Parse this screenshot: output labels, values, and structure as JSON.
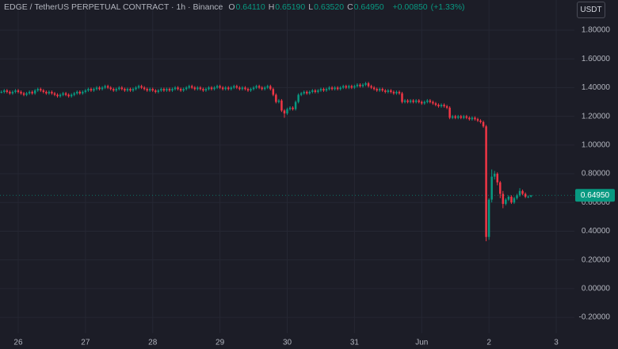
{
  "chart_data": {
    "type": "candlestick",
    "title": "EDGE / TetherUS PERPETUAL CONTRACT · 1h · Binance",
    "currency": "USDT",
    "ohlc_legend": [
      {
        "label": "O",
        "value_label": "0.64110"
      },
      {
        "label": "H",
        "value_label": "0.65190"
      },
      {
        "label": "L",
        "value_label": "0.63520"
      },
      {
        "label": "C",
        "value_label": "0.64950"
      }
    ],
    "change": {
      "value": 0.0085,
      "label": "+0.00850"
    },
    "change_pct": {
      "value": 1.33,
      "label": "(+1.33%)"
    },
    "last_price_label": "0.64950",
    "up_color": "#089981",
    "down_color": "#f23645",
    "grid": true,
    "xlim": [
      -0.5,
      204.5
    ],
    "xticks": [
      {
        "value": 6,
        "label": "26"
      },
      {
        "value": 30,
        "label": "27"
      },
      {
        "value": 54,
        "label": "28"
      },
      {
        "value": 78,
        "label": "29"
      },
      {
        "value": 102,
        "label": "30"
      },
      {
        "value": 126,
        "label": "31"
      },
      {
        "value": 150,
        "label": "Jun"
      },
      {
        "value": 174,
        "label": "2"
      },
      {
        "value": 198,
        "label": "3"
      }
    ],
    "ylim": [
      -0.31,
      2.01
    ],
    "yticks": [
      {
        "value": 1.8,
        "label": "1.80000"
      },
      {
        "value": 1.6,
        "label": "1.60000"
      },
      {
        "value": 1.4,
        "label": "1.40000"
      },
      {
        "value": 1.2,
        "label": "1.20000"
      },
      {
        "value": 1.0,
        "label": "1.00000"
      },
      {
        "value": 0.8,
        "label": "0.80000"
      },
      {
        "value": 0.6,
        "label": "0.60000"
      },
      {
        "value": 0.4,
        "label": "0.40000"
      },
      {
        "value": 0.2,
        "label": "0.20000"
      },
      {
        "value": 0,
        "label": "0.00000"
      },
      {
        "value": -0.2,
        "label": "-0.20000"
      }
    ],
    "x": [
      0,
      1,
      2,
      3,
      4,
      5,
      6,
      7,
      8,
      9,
      10,
      11,
      12,
      13,
      14,
      15,
      16,
      17,
      18,
      19,
      20,
      21,
      22,
      23,
      24,
      25,
      26,
      27,
      28,
      29,
      30,
      31,
      32,
      33,
      34,
      35,
      36,
      37,
      38,
      39,
      40,
      41,
      42,
      43,
      44,
      45,
      46,
      47,
      48,
      49,
      50,
      51,
      52,
      53,
      54,
      55,
      56,
      57,
      58,
      59,
      60,
      61,
      62,
      63,
      64,
      65,
      66,
      67,
      68,
      69,
      70,
      71,
      72,
      73,
      74,
      75,
      76,
      77,
      78,
      79,
      80,
      81,
      82,
      83,
      84,
      85,
      86,
      87,
      88,
      89,
      90,
      91,
      92,
      93,
      94,
      95,
      96,
      97,
      98,
      99,
      100,
      101,
      102,
      103,
      104,
      105,
      106,
      107,
      108,
      109,
      110,
      111,
      112,
      113,
      114,
      115,
      116,
      117,
      118,
      119,
      120,
      121,
      122,
      123,
      124,
      125,
      126,
      127,
      128,
      129,
      130,
      131,
      132,
      133,
      134,
      135,
      136,
      137,
      138,
      139,
      140,
      141,
      142,
      143,
      144,
      145,
      146,
      147,
      148,
      149,
      150,
      151,
      152,
      153,
      154,
      155,
      156,
      157,
      158,
      159,
      160,
      161,
      162,
      163,
      164,
      165,
      166,
      167,
      168,
      169,
      170,
      171,
      172,
      173,
      174,
      175,
      176,
      177,
      178,
      179,
      180,
      181,
      182,
      183,
      184,
      185,
      186,
      187,
      188,
      189
    ],
    "open": [
      1.37,
      1.37,
      1.38,
      1.37,
      1.36,
      1.37,
      1.38,
      1.37,
      1.36,
      1.35,
      1.36,
      1.37,
      1.36,
      1.38,
      1.39,
      1.38,
      1.37,
      1.36,
      1.37,
      1.36,
      1.35,
      1.34,
      1.35,
      1.36,
      1.35,
      1.34,
      1.35,
      1.36,
      1.37,
      1.36,
      1.37,
      1.38,
      1.39,
      1.38,
      1.39,
      1.4,
      1.39,
      1.4,
      1.41,
      1.4,
      1.39,
      1.38,
      1.39,
      1.4,
      1.39,
      1.38,
      1.39,
      1.38,
      1.39,
      1.4,
      1.41,
      1.4,
      1.39,
      1.38,
      1.39,
      1.38,
      1.37,
      1.38,
      1.39,
      1.38,
      1.39,
      1.38,
      1.39,
      1.4,
      1.39,
      1.38,
      1.39,
      1.4,
      1.41,
      1.4,
      1.39,
      1.4,
      1.39,
      1.38,
      1.39,
      1.4,
      1.39,
      1.4,
      1.41,
      1.4,
      1.39,
      1.4,
      1.39,
      1.4,
      1.41,
      1.4,
      1.39,
      1.4,
      1.39,
      1.38,
      1.39,
      1.4,
      1.41,
      1.4,
      1.39,
      1.4,
      1.41,
      1.39,
      1.35,
      1.3,
      1.31,
      1.24,
      1.22,
      1.25,
      1.26,
      1.25,
      1.3,
      1.35,
      1.36,
      1.37,
      1.36,
      1.37,
      1.38,
      1.37,
      1.38,
      1.39,
      1.38,
      1.39,
      1.4,
      1.39,
      1.4,
      1.39,
      1.4,
      1.41,
      1.4,
      1.41,
      1.4,
      1.41,
      1.42,
      1.41,
      1.42,
      1.43,
      1.41,
      1.4,
      1.39,
      1.38,
      1.39,
      1.38,
      1.37,
      1.38,
      1.37,
      1.36,
      1.37,
      1.36,
      1.3,
      1.31,
      1.3,
      1.31,
      1.3,
      1.31,
      1.3,
      1.29,
      1.3,
      1.31,
      1.3,
      1.29,
      1.28,
      1.27,
      1.28,
      1.27,
      1.26,
      1.19,
      1.2,
      1.19,
      1.2,
      1.19,
      1.2,
      1.19,
      1.18,
      1.19,
      1.18,
      1.17,
      1.16,
      1.13,
      0.36,
      0.62,
      0.78,
      0.8,
      0.74,
      0.66,
      0.59,
      0.62,
      0.64,
      0.6,
      0.63,
      0.65,
      0.68,
      0.66,
      0.64,
      0.6411
    ],
    "high": [
      1.38,
      1.39,
      1.39,
      1.38,
      1.38,
      1.39,
      1.39,
      1.38,
      1.37,
      1.37,
      1.38,
      1.38,
      1.39,
      1.4,
      1.4,
      1.39,
      1.38,
      1.38,
      1.38,
      1.37,
      1.36,
      1.36,
      1.37,
      1.37,
      1.36,
      1.36,
      1.37,
      1.38,
      1.38,
      1.38,
      1.39,
      1.4,
      1.4,
      1.4,
      1.41,
      1.41,
      1.41,
      1.42,
      1.42,
      1.41,
      1.4,
      1.4,
      1.41,
      1.41,
      1.4,
      1.4,
      1.4,
      1.4,
      1.41,
      1.42,
      1.42,
      1.41,
      1.4,
      1.4,
      1.4,
      1.39,
      1.39,
      1.4,
      1.4,
      1.4,
      1.4,
      1.4,
      1.41,
      1.41,
      1.4,
      1.4,
      1.41,
      1.42,
      1.42,
      1.41,
      1.41,
      1.41,
      1.4,
      1.4,
      1.41,
      1.41,
      1.41,
      1.42,
      1.42,
      1.41,
      1.41,
      1.41,
      1.41,
      1.42,
      1.42,
      1.41,
      1.41,
      1.41,
      1.4,
      1.4,
      1.41,
      1.42,
      1.42,
      1.41,
      1.41,
      1.42,
      1.42,
      1.4,
      1.36,
      1.32,
      1.32,
      1.25,
      1.26,
      1.27,
      1.27,
      1.31,
      1.36,
      1.37,
      1.38,
      1.38,
      1.38,
      1.39,
      1.39,
      1.39,
      1.4,
      1.4,
      1.4,
      1.41,
      1.41,
      1.41,
      1.41,
      1.41,
      1.42,
      1.42,
      1.42,
      1.42,
      1.42,
      1.43,
      1.43,
      1.43,
      1.44,
      1.44,
      1.42,
      1.41,
      1.4,
      1.4,
      1.4,
      1.39,
      1.39,
      1.39,
      1.38,
      1.38,
      1.38,
      1.37,
      1.32,
      1.32,
      1.32,
      1.32,
      1.32,
      1.32,
      1.31,
      1.31,
      1.32,
      1.32,
      1.31,
      1.3,
      1.29,
      1.29,
      1.29,
      1.28,
      1.27,
      1.21,
      1.21,
      1.21,
      1.21,
      1.21,
      1.21,
      1.2,
      1.2,
      1.2,
      1.19,
      1.18,
      1.17,
      1.14,
      0.63,
      0.83,
      0.82,
      0.81,
      0.75,
      0.68,
      0.63,
      0.65,
      0.65,
      0.64,
      0.66,
      0.7,
      0.69,
      0.67,
      0.65,
      0.6519
    ],
    "low": [
      1.36,
      1.36,
      1.36,
      1.35,
      1.35,
      1.36,
      1.36,
      1.35,
      1.34,
      1.34,
      1.35,
      1.35,
      1.35,
      1.37,
      1.37,
      1.36,
      1.35,
      1.35,
      1.35,
      1.34,
      1.33,
      1.33,
      1.34,
      1.34,
      1.33,
      1.33,
      1.34,
      1.35,
      1.35,
      1.35,
      1.36,
      1.37,
      1.37,
      1.37,
      1.38,
      1.38,
      1.38,
      1.39,
      1.39,
      1.38,
      1.37,
      1.37,
      1.38,
      1.38,
      1.37,
      1.37,
      1.37,
      1.37,
      1.38,
      1.39,
      1.39,
      1.38,
      1.37,
      1.37,
      1.37,
      1.36,
      1.36,
      1.37,
      1.37,
      1.37,
      1.37,
      1.37,
      1.38,
      1.38,
      1.37,
      1.37,
      1.38,
      1.39,
      1.39,
      1.38,
      1.38,
      1.38,
      1.37,
      1.37,
      1.38,
      1.38,
      1.38,
      1.39,
      1.39,
      1.38,
      1.38,
      1.38,
      1.38,
      1.39,
      1.39,
      1.38,
      1.38,
      1.38,
      1.37,
      1.37,
      1.38,
      1.39,
      1.39,
      1.38,
      1.38,
      1.39,
      1.38,
      1.34,
      1.29,
      1.29,
      1.23,
      1.19,
      1.21,
      1.24,
      1.24,
      1.24,
      1.29,
      1.34,
      1.35,
      1.35,
      1.35,
      1.36,
      1.36,
      1.36,
      1.37,
      1.37,
      1.37,
      1.38,
      1.38,
      1.38,
      1.38,
      1.38,
      1.39,
      1.39,
      1.39,
      1.39,
      1.39,
      1.4,
      1.4,
      1.4,
      1.41,
      1.4,
      1.39,
      1.38,
      1.37,
      1.37,
      1.37,
      1.36,
      1.36,
      1.36,
      1.35,
      1.35,
      1.35,
      1.29,
      1.29,
      1.29,
      1.29,
      1.29,
      1.29,
      1.29,
      1.28,
      1.28,
      1.29,
      1.29,
      1.28,
      1.27,
      1.26,
      1.26,
      1.26,
      1.25,
      1.18,
      1.18,
      1.18,
      1.18,
      1.18,
      1.18,
      1.18,
      1.17,
      1.17,
      1.17,
      1.16,
      1.15,
      1.12,
      0.33,
      0.34,
      0.6,
      0.76,
      0.72,
      0.63,
      0.56,
      0.58,
      0.61,
      0.59,
      0.59,
      0.62,
      0.64,
      0.65,
      0.63,
      0.63,
      0.6352
    ],
    "close": [
      1.37,
      1.38,
      1.37,
      1.36,
      1.37,
      1.38,
      1.37,
      1.36,
      1.35,
      1.36,
      1.37,
      1.36,
      1.38,
      1.39,
      1.38,
      1.37,
      1.36,
      1.37,
      1.36,
      1.35,
      1.34,
      1.35,
      1.36,
      1.35,
      1.34,
      1.35,
      1.36,
      1.37,
      1.36,
      1.37,
      1.38,
      1.39,
      1.38,
      1.39,
      1.4,
      1.39,
      1.4,
      1.41,
      1.4,
      1.39,
      1.38,
      1.39,
      1.4,
      1.39,
      1.38,
      1.39,
      1.38,
      1.39,
      1.4,
      1.41,
      1.4,
      1.39,
      1.38,
      1.39,
      1.38,
      1.37,
      1.38,
      1.39,
      1.38,
      1.39,
      1.38,
      1.39,
      1.4,
      1.39,
      1.38,
      1.39,
      1.4,
      1.41,
      1.4,
      1.39,
      1.4,
      1.39,
      1.38,
      1.39,
      1.4,
      1.39,
      1.4,
      1.41,
      1.4,
      1.39,
      1.4,
      1.39,
      1.4,
      1.41,
      1.4,
      1.39,
      1.4,
      1.39,
      1.38,
      1.39,
      1.4,
      1.41,
      1.4,
      1.39,
      1.4,
      1.41,
      1.39,
      1.35,
      1.3,
      1.31,
      1.24,
      1.22,
      1.25,
      1.26,
      1.25,
      1.3,
      1.35,
      1.36,
      1.37,
      1.36,
      1.37,
      1.38,
      1.37,
      1.38,
      1.39,
      1.38,
      1.39,
      1.4,
      1.39,
      1.4,
      1.39,
      1.4,
      1.41,
      1.4,
      1.41,
      1.4,
      1.41,
      1.42,
      1.41,
      1.42,
      1.43,
      1.41,
      1.4,
      1.39,
      1.38,
      1.39,
      1.38,
      1.37,
      1.38,
      1.37,
      1.36,
      1.37,
      1.36,
      1.3,
      1.31,
      1.3,
      1.31,
      1.3,
      1.31,
      1.3,
      1.29,
      1.3,
      1.31,
      1.3,
      1.29,
      1.28,
      1.27,
      1.28,
      1.27,
      1.26,
      1.19,
      1.2,
      1.19,
      1.2,
      1.19,
      1.2,
      1.19,
      1.18,
      1.19,
      1.18,
      1.17,
      1.16,
      1.13,
      0.36,
      0.62,
      0.78,
      0.8,
      0.74,
      0.66,
      0.59,
      0.62,
      0.64,
      0.6,
      0.63,
      0.65,
      0.68,
      0.66,
      0.64,
      0.6411,
      0.6495
    ]
  }
}
